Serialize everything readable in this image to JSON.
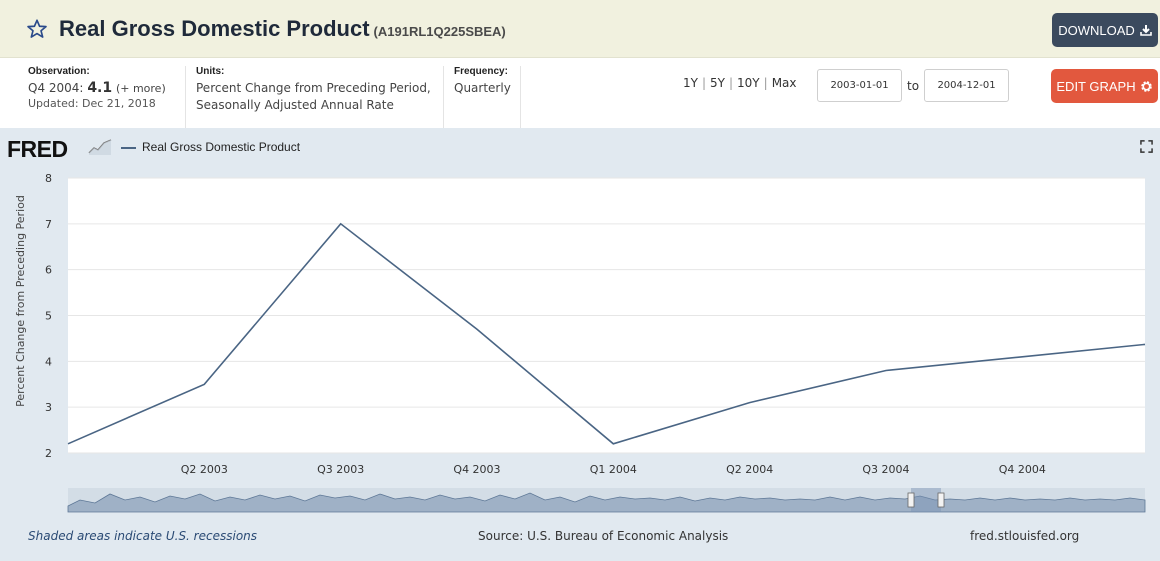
{
  "header": {
    "title": "Real Gross Domestic Product",
    "series_id": "(A191RL1Q225SBEA)",
    "download_label": "DOWNLOAD"
  },
  "info": {
    "observation_label": "Observation:",
    "observation_period": "Q4 2004:",
    "observation_value": "4.1",
    "observation_more": "(+ more)",
    "updated": "Updated: Dec 21, 2018",
    "units_label": "Units:",
    "units_line1": "Percent Change from Preceding Period,",
    "units_line2": "Seasonally Adjusted Annual Rate",
    "frequency_label": "Frequency:",
    "frequency_value": "Quarterly"
  },
  "range": {
    "options": [
      "1Y",
      "5Y",
      "10Y",
      "Max"
    ],
    "start_date": "2003-01-01",
    "to_label": "to",
    "end_date": "2004-12-01"
  },
  "edit_label": "EDIT GRAPH",
  "panel": {
    "logo": "FRED",
    "legend": "Real Gross Domestic Product",
    "recession_note": "Shaded areas indicate U.S. recessions",
    "source": "Source: U.S. Bureau of Economic Analysis",
    "site": "fred.stlouisfed.org"
  },
  "colors": {
    "line": "#4a6584",
    "panel_bg": "#e1e9f0",
    "download_bg": "#3b4a5e",
    "edit_bg": "#e2583e"
  },
  "chart_data": {
    "type": "line",
    "title": "",
    "ylabel": "Percent Change from Preceding Period",
    "xlabel": "",
    "ylim": [
      2,
      8
    ],
    "yticks": [
      2,
      3,
      4,
      5,
      6,
      7,
      8
    ],
    "x": [
      "Q1 2003",
      "Q2 2003",
      "Q3 2003",
      "Q4 2003",
      "Q1 2004",
      "Q2 2004",
      "Q3 2004",
      "Q4 2004"
    ],
    "x_tick_labels": [
      "Q2 2003",
      "Q3 2003",
      "Q4 2003",
      "Q1 2004",
      "Q2 2004",
      "Q3 2004",
      "Q4 2004"
    ],
    "series": [
      {
        "name": "Real Gross Domestic Product",
        "values": [
          2.2,
          3.5,
          7.0,
          4.7,
          2.2,
          3.1,
          3.8,
          4.1
        ]
      }
    ],
    "trailing_value": 4.4,
    "grid": true
  }
}
